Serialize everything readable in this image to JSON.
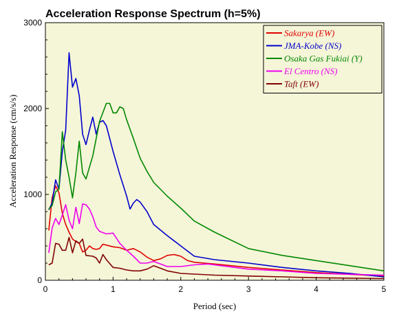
{
  "chart_data": {
    "type": "line",
    "title": "Acceleration Response Spectrum (h=5%)",
    "xlabel": "Period (sec)",
    "ylabel": "Acceleration Response (cm/s/s)",
    "xlim": [
      0,
      5
    ],
    "ylim": [
      0,
      3000
    ],
    "xticks": [
      "0",
      "1",
      "2",
      "3",
      "4",
      "5"
    ],
    "yticks": [
      "0",
      "1000",
      "2000",
      "3000"
    ],
    "grid": false,
    "background": "#f5f5d8",
    "legend_position": "top-right",
    "series": [
      {
        "name": "Sakarya (EW)",
        "color": "#e00000",
        "points": [
          [
            0.05,
            580
          ],
          [
            0.1,
            960
          ],
          [
            0.15,
            1100
          ],
          [
            0.2,
            1020
          ],
          [
            0.25,
            780
          ],
          [
            0.3,
            650
          ],
          [
            0.35,
            560
          ],
          [
            0.4,
            480
          ],
          [
            0.45,
            450
          ],
          [
            0.5,
            430
          ],
          [
            0.55,
            330
          ],
          [
            0.6,
            350
          ],
          [
            0.65,
            400
          ],
          [
            0.7,
            370
          ],
          [
            0.75,
            360
          ],
          [
            0.8,
            370
          ],
          [
            0.85,
            420
          ],
          [
            0.9,
            410
          ],
          [
            1.0,
            390
          ],
          [
            1.1,
            380
          ],
          [
            1.2,
            350
          ],
          [
            1.3,
            370
          ],
          [
            1.4,
            330
          ],
          [
            1.5,
            270
          ],
          [
            1.6,
            230
          ],
          [
            1.7,
            250
          ],
          [
            1.8,
            290
          ],
          [
            1.9,
            300
          ],
          [
            2.0,
            280
          ],
          [
            2.1,
            230
          ],
          [
            2.2,
            210
          ],
          [
            2.5,
            190
          ],
          [
            3.0,
            150
          ],
          [
            3.5,
            120
          ],
          [
            4.0,
            90
          ],
          [
            4.5,
            70
          ],
          [
            5.0,
            50
          ]
        ]
      },
      {
        "name": "JMA-Kobe (NS)",
        "color": "#0000cc",
        "points": [
          [
            0.05,
            820
          ],
          [
            0.1,
            900
          ],
          [
            0.15,
            1170
          ],
          [
            0.2,
            1060
          ],
          [
            0.25,
            1500
          ],
          [
            0.3,
            1750
          ],
          [
            0.35,
            2650
          ],
          [
            0.4,
            2250
          ],
          [
            0.45,
            2350
          ],
          [
            0.5,
            2150
          ],
          [
            0.55,
            1700
          ],
          [
            0.6,
            1580
          ],
          [
            0.65,
            1750
          ],
          [
            0.7,
            1900
          ],
          [
            0.75,
            1700
          ],
          [
            0.8,
            1840
          ],
          [
            0.85,
            1860
          ],
          [
            0.9,
            1800
          ],
          [
            1.0,
            1500
          ],
          [
            1.1,
            1230
          ],
          [
            1.2,
            980
          ],
          [
            1.25,
            830
          ],
          [
            1.3,
            900
          ],
          [
            1.35,
            940
          ],
          [
            1.4,
            910
          ],
          [
            1.5,
            800
          ],
          [
            1.6,
            650
          ],
          [
            1.8,
            520
          ],
          [
            2.0,
            400
          ],
          [
            2.2,
            280
          ],
          [
            2.5,
            240
          ],
          [
            3.0,
            200
          ],
          [
            3.5,
            150
          ],
          [
            4.0,
            110
          ],
          [
            4.5,
            80
          ],
          [
            5.0,
            40
          ]
        ]
      },
      {
        "name": "Osaka Gas Fukiai (Y)",
        "color": "#008800",
        "points": [
          [
            0.05,
            830
          ],
          [
            0.1,
            870
          ],
          [
            0.15,
            1030
          ],
          [
            0.2,
            1060
          ],
          [
            0.25,
            1730
          ],
          [
            0.3,
            1400
          ],
          [
            0.35,
            1200
          ],
          [
            0.4,
            960
          ],
          [
            0.45,
            1250
          ],
          [
            0.5,
            1620
          ],
          [
            0.55,
            1250
          ],
          [
            0.6,
            1180
          ],
          [
            0.7,
            1450
          ],
          [
            0.8,
            1850
          ],
          [
            0.9,
            2060
          ],
          [
            0.95,
            2060
          ],
          [
            1.0,
            1950
          ],
          [
            1.05,
            1950
          ],
          [
            1.1,
            2020
          ],
          [
            1.15,
            2000
          ],
          [
            1.2,
            1870
          ],
          [
            1.3,
            1650
          ],
          [
            1.4,
            1420
          ],
          [
            1.5,
            1270
          ],
          [
            1.6,
            1140
          ],
          [
            1.8,
            980
          ],
          [
            2.0,
            840
          ],
          [
            2.2,
            690
          ],
          [
            2.5,
            560
          ],
          [
            3.0,
            370
          ],
          [
            3.5,
            290
          ],
          [
            4.0,
            230
          ],
          [
            4.5,
            170
          ],
          [
            5.0,
            110
          ]
        ]
      },
      {
        "name": "El Centro (NS)",
        "color": "#ee00ee",
        "points": [
          [
            0.05,
            320
          ],
          [
            0.1,
            610
          ],
          [
            0.15,
            720
          ],
          [
            0.2,
            650
          ],
          [
            0.25,
            760
          ],
          [
            0.3,
            880
          ],
          [
            0.35,
            700
          ],
          [
            0.4,
            600
          ],
          [
            0.45,
            850
          ],
          [
            0.5,
            660
          ],
          [
            0.55,
            890
          ],
          [
            0.6,
            880
          ],
          [
            0.65,
            830
          ],
          [
            0.7,
            740
          ],
          [
            0.75,
            620
          ],
          [
            0.8,
            570
          ],
          [
            0.9,
            540
          ],
          [
            1.0,
            550
          ],
          [
            1.1,
            430
          ],
          [
            1.2,
            350
          ],
          [
            1.3,
            280
          ],
          [
            1.4,
            200
          ],
          [
            1.5,
            200
          ],
          [
            1.6,
            220
          ],
          [
            1.8,
            160
          ],
          [
            2.0,
            160
          ],
          [
            2.2,
            180
          ],
          [
            2.4,
            190
          ],
          [
            2.6,
            170
          ],
          [
            3.0,
            130
          ],
          [
            3.5,
            110
          ],
          [
            4.0,
            80
          ],
          [
            4.5,
            70
          ],
          [
            5.0,
            60
          ]
        ]
      },
      {
        "name": "Taft (EW)",
        "color": "#800000",
        "points": [
          [
            0.05,
            180
          ],
          [
            0.1,
            200
          ],
          [
            0.15,
            430
          ],
          [
            0.2,
            420
          ],
          [
            0.25,
            350
          ],
          [
            0.3,
            350
          ],
          [
            0.35,
            500
          ],
          [
            0.4,
            320
          ],
          [
            0.45,
            460
          ],
          [
            0.5,
            430
          ],
          [
            0.55,
            480
          ],
          [
            0.6,
            290
          ],
          [
            0.7,
            280
          ],
          [
            0.75,
            260
          ],
          [
            0.8,
            200
          ],
          [
            0.85,
            300
          ],
          [
            0.9,
            240
          ],
          [
            1.0,
            150
          ],
          [
            1.1,
            140
          ],
          [
            1.2,
            120
          ],
          [
            1.3,
            110
          ],
          [
            1.4,
            110
          ],
          [
            1.5,
            130
          ],
          [
            1.6,
            170
          ],
          [
            1.7,
            140
          ],
          [
            1.8,
            110
          ],
          [
            2.0,
            80
          ],
          [
            2.5,
            60
          ],
          [
            3.0,
            50
          ],
          [
            3.5,
            40
          ],
          [
            4.0,
            30
          ],
          [
            5.0,
            20
          ]
        ]
      }
    ]
  }
}
